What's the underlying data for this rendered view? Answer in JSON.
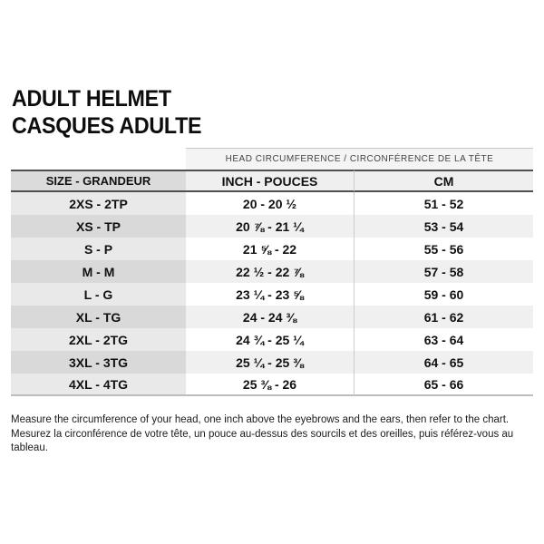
{
  "title": {
    "line1": "ADULT HELMET",
    "line2": "CASQUES ADULTE"
  },
  "chart_data": {
    "type": "table",
    "title": "ADULT HELMET / CASQUES ADULTE",
    "span_header": "HEAD CIRCUMFERENCE / CIRCONFÉRENCE DE LA TÊTE",
    "columns": [
      "SIZE - GRANDEUR",
      "INCH - POUCES",
      "CM"
    ],
    "rows": [
      [
        "2XS - 2TP",
        "20 - 20 ½",
        "51 - 52"
      ],
      [
        "XS - TP",
        "20 ⅞ - 21 ¼",
        "53 - 54"
      ],
      [
        "S - P",
        "21 ⅝ - 22",
        "55 - 56"
      ],
      [
        "M - M",
        "22 ½ - 22 ⅞",
        "57 - 58"
      ],
      [
        "L - G",
        "23 ¼ - 23 ⅝",
        "59 - 60"
      ],
      [
        "XL - TG",
        "24 - 24 ⅜",
        "61 - 62"
      ],
      [
        "2XL - 2TG",
        "24 ¾ - 25 ¼",
        "63 - 64"
      ],
      [
        "3XL - 3TG",
        "25 ¼ - 25 ⅜",
        "64 - 65"
      ],
      [
        "4XL - 4TG",
        "25 ⅜ - 26",
        "65 - 66"
      ]
    ]
  },
  "footer": {
    "line_en": "Measure the circumference of your head, one inch above the eyebrows and the ears, then refer to the chart.",
    "line_fr": "Mesurez la circonférence de votre tête, un pouce au-dessus des sourcils et des oreilles, puis référez-vous au tableau."
  },
  "colors": {
    "header_rule_dark": "#4f4f4f",
    "size_col_header_bg": "#dbdbdb",
    "data_col_header_bg": "#efefef",
    "span_header_bg": "#f4f4f4",
    "size_row_odd_bg": "#e9e9e9",
    "size_row_even_bg": "#d9d9d9",
    "data_row_odd_bg": "#ffffff",
    "data_row_even_bg": "#f0f0f0",
    "table_bottom_rule": "#bdbdbd",
    "text": "#111111"
  }
}
